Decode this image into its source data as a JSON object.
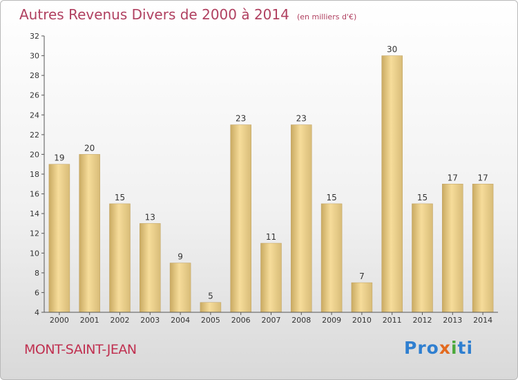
{
  "header": {
    "title": "Autres Revenus Divers de 2000 à 2014",
    "unit": "(en milliers d'€)"
  },
  "footer": {
    "place": "MONT-SAINT-JEAN",
    "brand": [
      "Pro",
      "x",
      "i",
      "ti"
    ]
  },
  "colors": {
    "title": "#b04060",
    "bar_light": "#f6dc9a",
    "bar_dark": "#c9aa62",
    "axis": "#555555"
  },
  "chart_data": {
    "type": "bar",
    "title": "Autres Revenus Divers de 2000 à 2014",
    "ylabel": "",
    "xlabel": "",
    "ylim": [
      4,
      32
    ],
    "ytick_step": 2,
    "grid": false,
    "categories": [
      "2000",
      "2001",
      "2002",
      "2003",
      "2004",
      "2005",
      "2006",
      "2007",
      "2008",
      "2009",
      "2010",
      "2011",
      "2012",
      "2013",
      "2014"
    ],
    "values": [
      19,
      20,
      15,
      13,
      9,
      5,
      23,
      11,
      23,
      15,
      7,
      30,
      15,
      17,
      17
    ]
  }
}
